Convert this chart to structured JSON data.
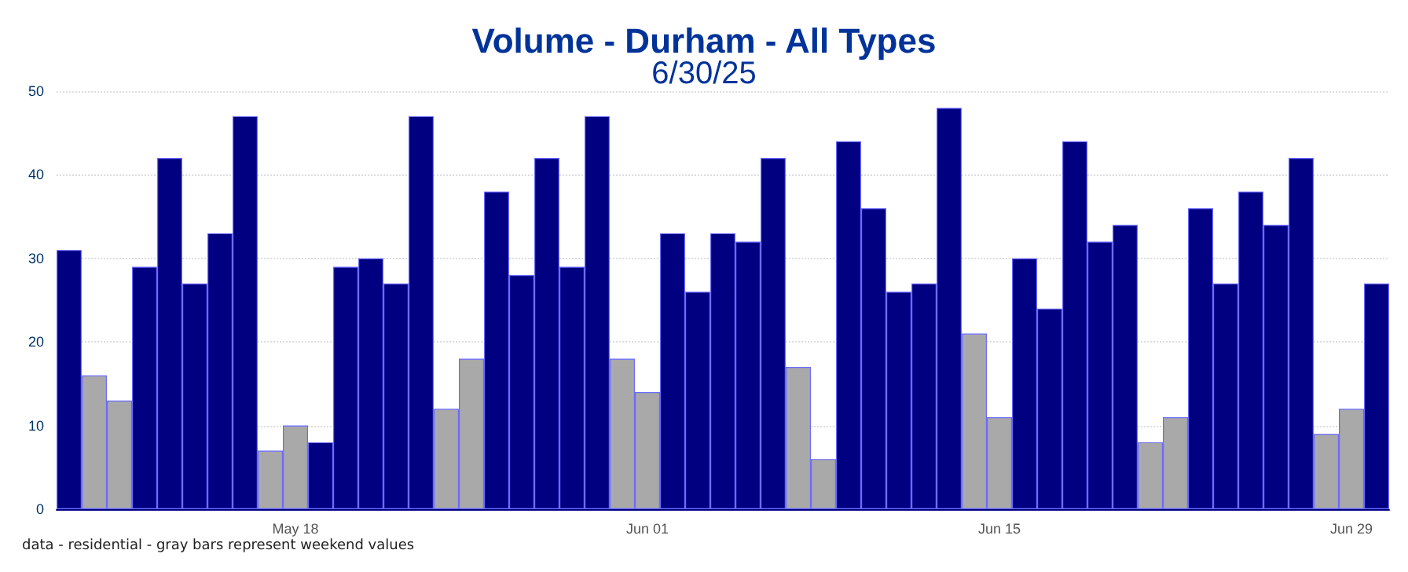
{
  "chart_data": {
    "type": "bar",
    "title": "Volume - Durham - All Types",
    "subtitle": "6/30/25",
    "categories": [
      null,
      null,
      null,
      null,
      null,
      null,
      null,
      null,
      null,
      "May 18",
      null,
      null,
      null,
      null,
      null,
      null,
      null,
      null,
      null,
      null,
      null,
      null,
      null,
      "Jun 01",
      null,
      null,
      null,
      null,
      null,
      null,
      null,
      null,
      null,
      null,
      null,
      null,
      null,
      "Jun 15",
      null,
      null,
      null,
      null,
      null,
      null,
      null,
      null,
      null,
      null,
      null,
      null,
      null,
      "Jun 29",
      null
    ],
    "values": [
      31,
      16,
      13,
      29,
      42,
      27,
      33,
      47,
      7,
      10,
      8,
      29,
      30,
      27,
      47,
      12,
      18,
      38,
      28,
      42,
      29,
      47,
      18,
      14,
      33,
      26,
      33,
      32,
      42,
      17,
      6,
      44,
      36,
      26,
      27,
      48,
      21,
      11,
      30,
      24,
      44,
      32,
      34,
      8,
      11,
      36,
      27,
      38,
      34,
      42,
      9,
      12,
      27
    ],
    "colors": [
      "#000080",
      "#a9a9a9",
      "#a9a9a9",
      "#000080",
      "#000080",
      "#000080",
      "#000080",
      "#000080",
      "#a9a9a9",
      "#a9a9a9",
      "#000080",
      "#000080",
      "#000080",
      "#000080",
      "#000080",
      "#a9a9a9",
      "#a9a9a9",
      "#000080",
      "#000080",
      "#000080",
      "#000080",
      "#000080",
      "#a9a9a9",
      "#a9a9a9",
      "#000080",
      "#000080",
      "#000080",
      "#000080",
      "#000080",
      "#a9a9a9",
      "#a9a9a9",
      "#000080",
      "#000080",
      "#000080",
      "#000080",
      "#000080",
      "#a9a9a9",
      "#a9a9a9",
      "#000080",
      "#000080",
      "#000080",
      "#000080",
      "#000080",
      "#a9a9a9",
      "#a9a9a9",
      "#000080",
      "#000080",
      "#000080",
      "#000080",
      "#000080",
      "#a9a9a9",
      "#a9a9a9",
      "#000080"
    ],
    "ylim": [
      0,
      50
    ],
    "yticks": [
      0,
      10,
      20,
      30,
      40,
      50
    ],
    "grid": "y",
    "annotations": [
      "data - residential - gray bars represent weekend values"
    ]
  }
}
